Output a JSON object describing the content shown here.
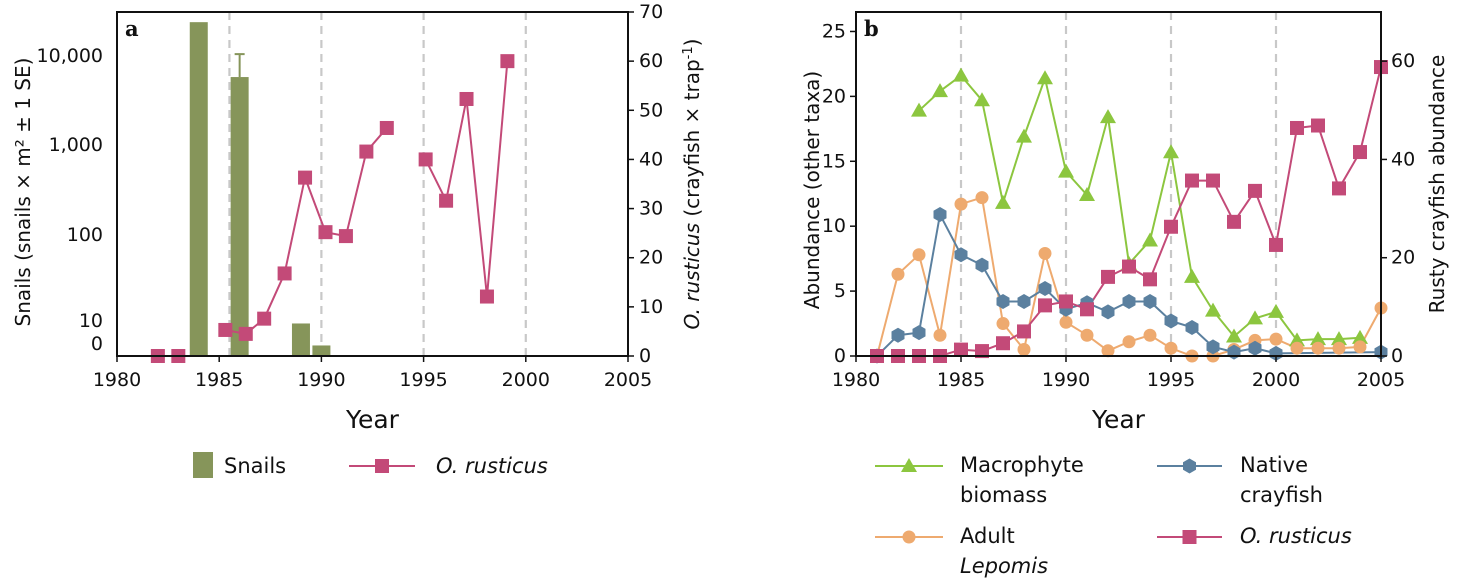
{
  "colors": {
    "snails": "#86955a",
    "rusticus": "#c34a78",
    "macrophyte": "#8cc63f",
    "lepomis": "#eeaa6f",
    "native": "#5b809f",
    "grid": "#c8c8c8"
  },
  "chart_data": [
    {
      "panel": "a",
      "type": "bar+line",
      "x_label": "Year",
      "x_ticks": [
        "1980",
        "1985",
        "1990",
        "1995",
        "2000",
        "2005"
      ],
      "xlim": [
        1980,
        2005
      ],
      "y_left_label": "Snails (snails × m² ± 1 SE)",
      "y_left_ticks": [
        "0",
        "10",
        "100",
        "1,000",
        "10,000"
      ],
      "y_left_scale": "log (pseudo, 0 at base)",
      "y_right_label_italic": "O. rusticus",
      "y_right_label_rest": " (crayfish × trap",
      "y_right_label_sup": "-1",
      "y_right_label_end": ")",
      "y_right_ticks": [
        "0",
        "10",
        "20",
        "30",
        "40",
        "50",
        "60",
        "70"
      ],
      "y_right_lim": [
        0,
        70
      ],
      "vertical_gridlines": [
        1985.5,
        1990,
        1995,
        2000
      ],
      "snails": {
        "name": "Snails",
        "color": "snails",
        "bars": [
          {
            "year": 1984,
            "value": 24000
          },
          {
            "year": 1986,
            "value": 5800,
            "se_upper": 10500
          },
          {
            "year": 1989,
            "value": 8.5
          },
          {
            "year": 1990,
            "value": 2
          },
          {
            "year": 2000,
            "value": 1
          }
        ]
      },
      "rusticus": {
        "name": "O. rusticus",
        "color": "rusticus",
        "segments": [
          [
            [
              1982,
              0
            ],
            [
              1983,
              0
            ]
          ],
          [
            [
              1985.3,
              5.3
            ],
            [
              1986.3,
              4.5
            ],
            [
              1987.2,
              7.6
            ],
            [
              1988.2,
              16.8
            ],
            [
              1989.2,
              36.3
            ],
            [
              1990.2,
              25.2
            ],
            [
              1991.2,
              24.4
            ],
            [
              1992.2,
              41.6
            ],
            [
              1993.2,
              46.4
            ]
          ],
          [
            [
              1995.1,
              40.0
            ],
            [
              1996.1,
              31.6
            ],
            [
              1997.1,
              52.3
            ],
            [
              1998.1,
              12.1
            ],
            [
              1999.1,
              60.0
            ]
          ]
        ]
      },
      "legend": [
        {
          "label": "Snails",
          "kind": "bar",
          "color": "snails"
        },
        {
          "label": "O. rusticus",
          "kind": "line",
          "color": "rusticus",
          "italic": true
        }
      ]
    },
    {
      "panel": "b",
      "type": "line",
      "x_label": "Year",
      "x_ticks": [
        "1980",
        "1985",
        "1990",
        "1995",
        "2000",
        "2005"
      ],
      "xlim": [
        1980,
        2005
      ],
      "y_left_label": "Abundance (other taxa)",
      "y_left_ticks": [
        "0",
        "5",
        "10",
        "15",
        "20",
        "25"
      ],
      "y_left_lim": [
        0,
        26.5
      ],
      "y_right_label": "Rusty crayfish abundance",
      "y_right_ticks": [
        "0",
        "20",
        "40",
        "60"
      ],
      "y_right_lim": [
        0,
        70
      ],
      "vertical_gridlines": [
        1985,
        1990,
        1995,
        2000
      ],
      "series": [
        {
          "name": "Macrophyte biomass",
          "color": "macrophyte",
          "marker": "triangle",
          "axis": "left",
          "points": [
            [
              1983,
              18.9
            ],
            [
              1984,
              20.4
            ],
            [
              1985,
              21.6
            ],
            [
              1986,
              19.7
            ],
            [
              1987,
              11.8
            ],
            [
              1988,
              16.9
            ],
            [
              1989,
              21.4
            ],
            [
              1990,
              14.2
            ],
            [
              1991,
              12.4
            ],
            [
              1992,
              18.4
            ],
            [
              1993,
              7.1
            ],
            [
              1994,
              8.9
            ],
            [
              1995,
              15.7
            ],
            [
              1996,
              6.1
            ],
            [
              1997,
              3.5
            ],
            [
              1998,
              1.5
            ],
            [
              1999,
              2.9
            ],
            [
              2000,
              3.4
            ],
            [
              2001,
              1.2
            ],
            [
              2002,
              1.3
            ],
            [
              2003,
              1.3
            ],
            [
              2004,
              1.4
            ]
          ]
        },
        {
          "name": "Adult Lepomis",
          "color": "lepomis",
          "marker": "circle",
          "axis": "left",
          "points": [
            [
              1981,
              0.0
            ],
            [
              1982,
              6.3
            ],
            [
              1983,
              7.8
            ],
            [
              1984,
              1.6
            ],
            [
              1985,
              11.7
            ],
            [
              1986,
              12.2
            ],
            [
              1987,
              2.5
            ],
            [
              1988,
              0.5
            ],
            [
              1989,
              7.9
            ],
            [
              1990,
              2.6
            ],
            [
              1991,
              1.6
            ],
            [
              1992,
              0.4
            ],
            [
              1993,
              1.1
            ],
            [
              1994,
              1.6
            ],
            [
              1995,
              0.6
            ],
            [
              1996,
              0.0
            ],
            [
              1997,
              0.0
            ],
            [
              1998,
              0.5
            ],
            [
              1999,
              1.2
            ],
            [
              2000,
              1.3
            ],
            [
              2001,
              0.6
            ],
            [
              2002,
              0.6
            ],
            [
              2003,
              0.6
            ],
            [
              2004,
              0.7
            ],
            [
              2005,
              3.7
            ]
          ]
        },
        {
          "name": "Native crayfish",
          "color": "native",
          "marker": "hexagon",
          "axis": "left",
          "points": [
            [
              1981,
              0.0
            ],
            [
              1982,
              1.6
            ],
            [
              1983,
              1.8
            ],
            [
              1984,
              10.9
            ],
            [
              1985,
              7.8
            ],
            [
              1986,
              7.0
            ],
            [
              1987,
              4.2
            ],
            [
              1988,
              4.2
            ],
            [
              1989,
              5.2
            ],
            [
              1990,
              3.6
            ],
            [
              1991,
              4.1
            ],
            [
              1992,
              3.4
            ],
            [
              1993,
              4.2
            ],
            [
              1994,
              4.2
            ],
            [
              1995,
              2.7
            ],
            [
              1996,
              2.2
            ],
            [
              1997,
              0.7
            ],
            [
              1998,
              0.3
            ],
            [
              1999,
              0.6
            ],
            [
              2000,
              0.2
            ],
            [
              2005,
              0.3
            ]
          ]
        },
        {
          "name": "O. rusticus",
          "color": "rusticus",
          "marker": "square",
          "axis": "right",
          "points": [
            [
              1981,
              0.0
            ],
            [
              1982,
              0.0
            ],
            [
              1983,
              0.0
            ],
            [
              1984,
              0.0
            ],
            [
              1985,
              1.3
            ],
            [
              1986,
              1.0
            ],
            [
              1987,
              2.6
            ],
            [
              1988,
              5.0
            ],
            [
              1989,
              10.3
            ],
            [
              1990,
              11.1
            ],
            [
              1991,
              9.5
            ],
            [
              1992,
              16.1
            ],
            [
              1993,
              18.2
            ],
            [
              1994,
              15.6
            ],
            [
              1995,
              26.3
            ],
            [
              1996,
              35.7
            ],
            [
              1997,
              35.7
            ],
            [
              1998,
              27.3
            ],
            [
              1999,
              33.6
            ],
            [
              2000,
              22.6
            ],
            [
              2001,
              46.4
            ],
            [
              2002,
              46.9
            ],
            [
              2003,
              34.1
            ],
            [
              2004,
              41.5
            ],
            [
              2005,
              58.8
            ]
          ]
        }
      ],
      "legend": [
        {
          "label": "Macrophyte",
          "label2": "biomass",
          "color": "macrophyte",
          "marker": "triangle",
          "italic2": false
        },
        {
          "label": "Native",
          "label2": "crayfish",
          "color": "native",
          "marker": "hexagon",
          "italic2": false
        },
        {
          "label": "Adult",
          "label2": "Lepomis",
          "color": "lepomis",
          "marker": "circle",
          "italic2": true
        },
        {
          "label": "O. rusticus",
          "label2": "",
          "color": "rusticus",
          "marker": "square",
          "italic": true
        }
      ]
    }
  ]
}
